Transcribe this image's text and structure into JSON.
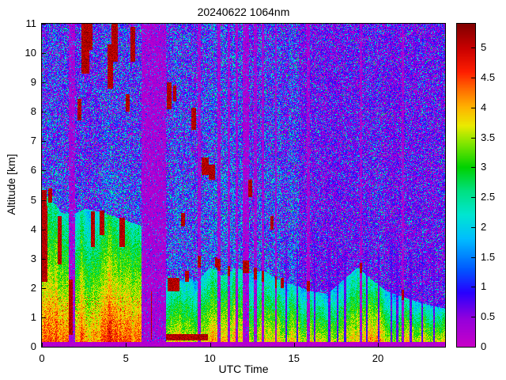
{
  "chart_data": {
    "type": "heatmap",
    "title": "20240622 1064nm",
    "xlabel": "UTC Time",
    "ylabel": "Altitude [km]",
    "xlim": [
      0,
      24
    ],
    "ylim": [
      0,
      11
    ],
    "x_ticks": [
      0,
      5,
      10,
      15,
      20
    ],
    "y_ticks": [
      0,
      1,
      2,
      3,
      4,
      5,
      6,
      7,
      8,
      9,
      10,
      11
    ],
    "colorbar": {
      "min": 0,
      "max": 5.4,
      "ticks": [
        0,
        0.5,
        1,
        1.5,
        2,
        2.5,
        3,
        3.5,
        4,
        4.5,
        5
      ],
      "colormap": [
        [
          0.0,
          200,
          0,
          200
        ],
        [
          0.45,
          150,
          0,
          220
        ],
        [
          0.9,
          40,
          0,
          255
        ],
        [
          1.3,
          0,
          90,
          255
        ],
        [
          1.8,
          0,
          190,
          255
        ],
        [
          2.2,
          0,
          230,
          210
        ],
        [
          2.6,
          0,
          225,
          130
        ],
        [
          3.0,
          0,
          210,
          0
        ],
        [
          3.4,
          130,
          230,
          0
        ],
        [
          3.7,
          235,
          235,
          0
        ],
        [
          4.0,
          255,
          180,
          0
        ],
        [
          4.3,
          255,
          110,
          0
        ],
        [
          4.6,
          255,
          30,
          0
        ],
        [
          5.0,
          200,
          0,
          0
        ],
        [
          5.4,
          130,
          0,
          0
        ]
      ]
    },
    "heatmap_model": {
      "seed": 1337,
      "left_right_split": 15.3,
      "speckle_density": {
        "left_low": 0.5,
        "left_high": 0.4,
        "right": 0.2
      },
      "aerosol": {
        "left_ground_value": 4.55,
        "left_span": 2.1,
        "right_ground_value": 3.95,
        "right_span": 1.95,
        "left_end": 6.3
      },
      "cloud_value": [
        4.85,
        5.4
      ],
      "layer_top": [
        [
          0,
          5.3
        ],
        [
          0.7,
          4.9
        ],
        [
          1.2,
          4.55
        ],
        [
          1.8,
          4.5
        ],
        [
          2.6,
          4.7
        ],
        [
          3.4,
          4.6
        ],
        [
          4.2,
          4.45
        ],
        [
          5.0,
          4.3
        ],
        [
          6.0,
          4.1
        ],
        [
          7.4,
          2.3
        ],
        [
          8.0,
          2.1
        ],
        [
          8.6,
          2.4
        ],
        [
          9.2,
          2.2
        ],
        [
          10.0,
          2.7
        ],
        [
          10.8,
          2.4
        ],
        [
          11.6,
          2.7
        ],
        [
          12.4,
          2.5
        ],
        [
          13.2,
          2.6
        ],
        [
          14.0,
          2.3
        ],
        [
          15.0,
          2.1
        ],
        [
          16.0,
          1.9
        ],
        [
          17.0,
          1.8
        ],
        [
          18.0,
          2.3
        ],
        [
          18.8,
          2.7
        ],
        [
          19.6,
          2.3
        ],
        [
          20.5,
          1.9
        ],
        [
          21.5,
          1.7
        ],
        [
          22.5,
          1.5
        ],
        [
          23.2,
          1.4
        ],
        [
          24,
          1.3
        ]
      ],
      "attenuated_bands": [
        [
          1.62,
          1.98
        ],
        [
          5.95,
          7.38
        ],
        [
          9.28,
          9.45
        ],
        [
          10.45,
          10.62
        ],
        [
          11.05,
          11.18
        ],
        [
          11.55,
          11.68
        ],
        [
          11.95,
          12.32
        ],
        [
          12.62,
          12.78
        ],
        [
          13.1,
          13.22
        ],
        [
          13.88,
          13.98
        ],
        [
          15.78,
          15.97
        ],
        [
          18.9,
          19.06
        ],
        [
          21.42,
          21.56
        ]
      ],
      "thin_gaps": [
        14.55,
        15.2,
        16.25,
        17.1,
        17.6,
        18.05,
        19.35,
        20.05,
        20.8,
        21.15,
        21.95,
        22.65,
        23.35
      ],
      "clouds": [
        [
          0.0,
          0.35,
          2.2,
          4.8
        ],
        [
          0.0,
          0.3,
          4.6,
          5.35
        ],
        [
          0.38,
          0.62,
          4.9,
          5.4
        ],
        [
          0.95,
          1.2,
          2.8,
          4.45
        ],
        [
          1.6,
          1.82,
          0.4,
          2.3
        ],
        [
          2.1,
          2.35,
          7.7,
          8.45
        ],
        [
          2.35,
          2.8,
          9.3,
          11.0
        ],
        [
          2.78,
          3.0,
          10.1,
          11.0
        ],
        [
          2.9,
          3.15,
          3.4,
          4.6
        ],
        [
          3.45,
          3.7,
          3.8,
          4.65
        ],
        [
          3.9,
          4.25,
          8.8,
          10.3
        ],
        [
          4.15,
          4.5,
          9.7,
          11.0
        ],
        [
          4.6,
          4.95,
          3.4,
          4.4
        ],
        [
          5.25,
          5.55,
          9.7,
          10.9
        ],
        [
          5.0,
          5.2,
          8.0,
          8.6
        ],
        [
          6.48,
          6.56,
          0.25,
          1.9
        ],
        [
          7.45,
          7.72,
          8.1,
          9.0
        ],
        [
          7.8,
          8.02,
          8.35,
          8.9
        ],
        [
          8.3,
          8.5,
          4.1,
          4.55
        ],
        [
          8.9,
          9.2,
          7.4,
          8.15
        ],
        [
          9.28,
          9.45,
          2.7,
          3.1
        ],
        [
          9.5,
          9.95,
          5.85,
          6.45
        ],
        [
          9.95,
          10.3,
          5.7,
          6.2
        ],
        [
          10.45,
          10.62,
          2.6,
          3.0
        ],
        [
          11.05,
          11.18,
          2.4,
          2.75
        ],
        [
          11.95,
          12.32,
          2.5,
          2.95
        ],
        [
          12.3,
          12.52,
          5.1,
          5.7
        ],
        [
          12.62,
          12.78,
          2.3,
          2.7
        ],
        [
          13.1,
          13.22,
          2.2,
          2.6
        ],
        [
          13.6,
          13.78,
          4.0,
          4.45
        ],
        [
          13.88,
          13.98,
          2.0,
          2.4
        ],
        [
          15.78,
          15.97,
          1.9,
          2.25
        ],
        [
          18.9,
          19.06,
          2.5,
          2.85
        ],
        [
          21.42,
          21.56,
          1.6,
          1.95
        ],
        [
          7.5,
          8.2,
          1.9,
          2.35
        ],
        [
          8.5,
          8.75,
          2.2,
          2.6
        ],
        [
          10.3,
          10.45,
          2.7,
          3.05
        ],
        [
          14.2,
          14.4,
          2.0,
          2.35
        ],
        [
          7.4,
          9.9,
          0.22,
          0.42
        ]
      ]
    }
  }
}
